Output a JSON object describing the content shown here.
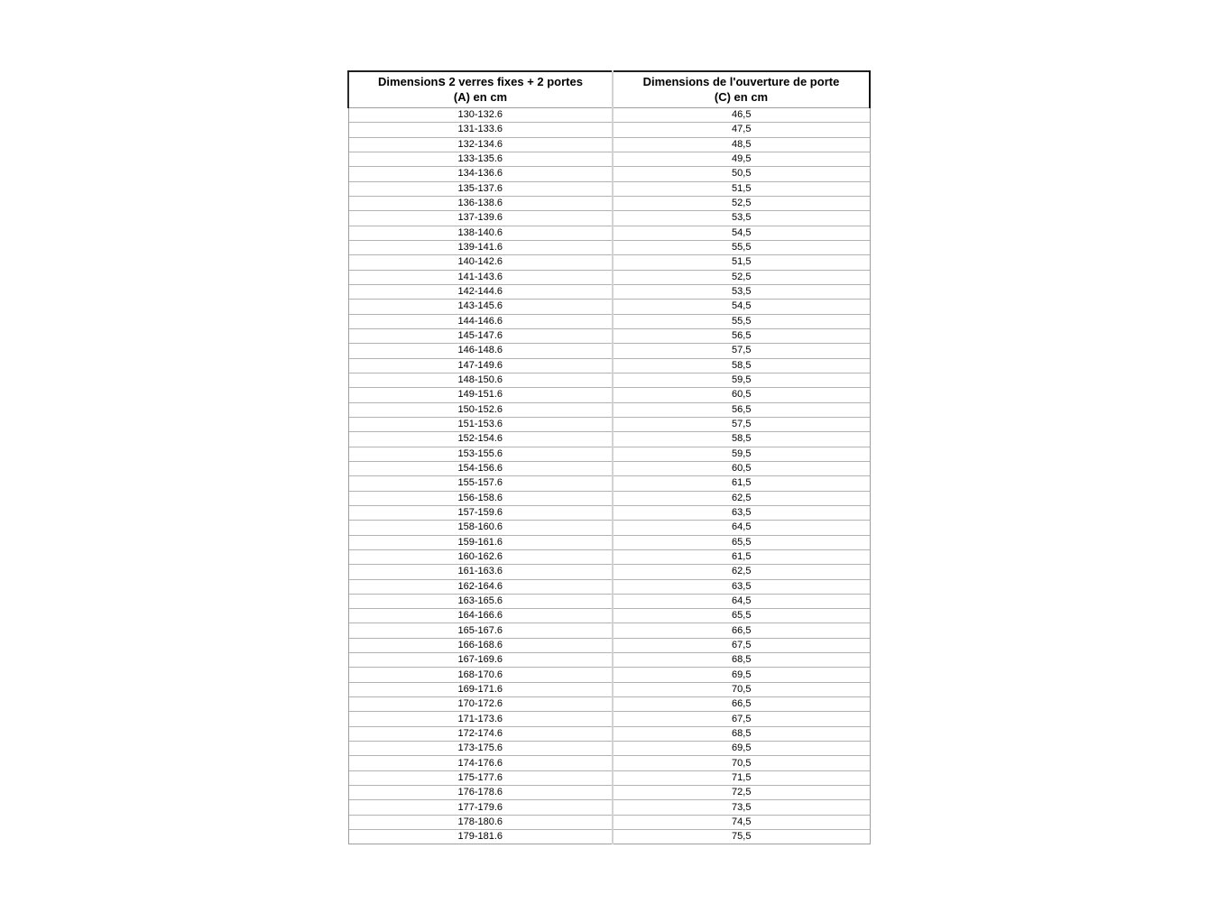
{
  "colors": {
    "page_background": "#ffffff",
    "header_border_dark": "#1f1f1f",
    "row_border_light": "#b3b3b3",
    "outer_border_gray": "#9e9e9e",
    "column_divider": "#d2d2d2",
    "text": "#000000"
  },
  "table": {
    "header": {
      "col1": {
        "line1_prefix": "Dimension",
        "line1_tall_s": "s",
        "line1_suffix": " 2 verres fixes + 2 portes",
        "line2": "(A) en cm"
      },
      "col2": {
        "line1": "Dimensions de l'ouverture de porte",
        "line2": "(C) en cm"
      }
    },
    "rows": [
      {
        "a": "130-132.6",
        "c": "46,5"
      },
      {
        "a": "131-133.6",
        "c": "47,5"
      },
      {
        "a": "132-134.6",
        "c": "48,5"
      },
      {
        "a": "133-135.6",
        "c": "49,5"
      },
      {
        "a": "134-136.6",
        "c": "50,5"
      },
      {
        "a": "135-137.6",
        "c": "51,5"
      },
      {
        "a": "136-138.6",
        "c": "52,5"
      },
      {
        "a": "137-139.6",
        "c": "53,5"
      },
      {
        "a": "138-140.6",
        "c": "54,5"
      },
      {
        "a": "139-141.6",
        "c": "55,5"
      },
      {
        "a": "140-142.6",
        "c": "51,5"
      },
      {
        "a": "141-143.6",
        "c": "52,5"
      },
      {
        "a": "142-144.6",
        "c": "53,5"
      },
      {
        "a": "143-145.6",
        "c": "54,5"
      },
      {
        "a": "144-146.6",
        "c": "55,5"
      },
      {
        "a": "145-147.6",
        "c": "56,5"
      },
      {
        "a": "146-148.6",
        "c": "57,5"
      },
      {
        "a": "147-149.6",
        "c": "58,5"
      },
      {
        "a": "148-150.6",
        "c": "59,5"
      },
      {
        "a": "149-151.6",
        "c": "60,5"
      },
      {
        "a": "150-152.6",
        "c": "56,5"
      },
      {
        "a": "151-153.6",
        "c": "57,5"
      },
      {
        "a": "152-154.6",
        "c": "58,5"
      },
      {
        "a": "153-155.6",
        "c": "59,5"
      },
      {
        "a": "154-156.6",
        "c": "60,5"
      },
      {
        "a": "155-157.6",
        "c": "61,5"
      },
      {
        "a": "156-158.6",
        "c": "62,5"
      },
      {
        "a": "157-159.6",
        "c": "63,5"
      },
      {
        "a": "158-160.6",
        "c": "64,5"
      },
      {
        "a": "159-161.6",
        "c": "65,5"
      },
      {
        "a": "160-162.6",
        "c": "61,5"
      },
      {
        "a": "161-163.6",
        "c": "62,5"
      },
      {
        "a": "162-164.6",
        "c": "63,5"
      },
      {
        "a": "163-165.6",
        "c": "64,5"
      },
      {
        "a": "164-166.6",
        "c": "65,5"
      },
      {
        "a": "165-167.6",
        "c": "66,5"
      },
      {
        "a": "166-168.6",
        "c": "67,5"
      },
      {
        "a": "167-169.6",
        "c": "68,5"
      },
      {
        "a": "168-170.6",
        "c": "69,5"
      },
      {
        "a": "169-171.6",
        "c": "70,5"
      },
      {
        "a": "170-172.6",
        "c": "66,5"
      },
      {
        "a": "171-173.6",
        "c": "67,5"
      },
      {
        "a": "172-174.6",
        "c": "68,5"
      },
      {
        "a": "173-175.6",
        "c": "69,5"
      },
      {
        "a": "174-176.6",
        "c": "70,5"
      },
      {
        "a": "175-177.6",
        "c": "71,5"
      },
      {
        "a": "176-178.6",
        "c": "72,5"
      },
      {
        "a": "177-179.6",
        "c": "73,5"
      },
      {
        "a": "178-180.6",
        "c": "74,5"
      },
      {
        "a": "179-181.6",
        "c": "75,5"
      }
    ]
  }
}
